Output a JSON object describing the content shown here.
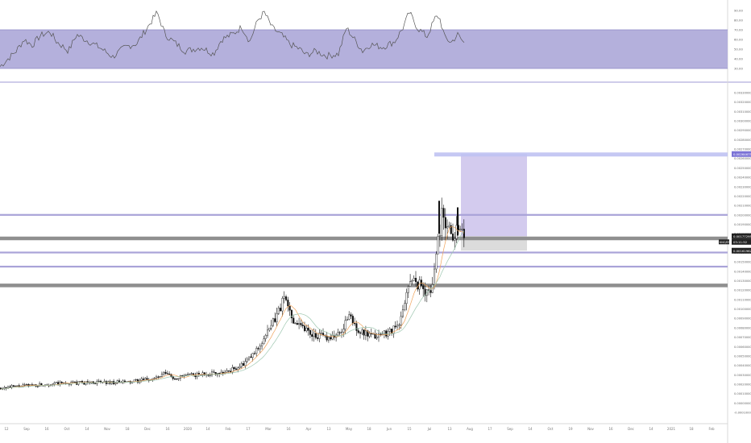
{
  "colors": {
    "rsi_band": "#b4b0dc",
    "rsi_line": "#555555",
    "long_zone": "#d3cbee",
    "stop_zone": "#dcdcdc",
    "level_purple": "#a9a3d8",
    "level_gray": "#8f8f8f",
    "target_line": "#bfc2f2",
    "candle": "#111111",
    "ma_fast": "#f0a35a",
    "ma_slow": "#9ec7b0",
    "label_dark": "#222222"
  },
  "rsi": {
    "type": "line",
    "axis_ticks": [
      "90.00",
      "80.00",
      "70.00",
      "60.00",
      "50.00",
      "40.00",
      "30.00"
    ],
    "band": [
      30,
      70
    ],
    "ylim": [
      25,
      95
    ]
  },
  "price_axis_ticks": [
    "0.00330000",
    "0.00320000",
    "0.00310000",
    "0.00300000",
    "0.00290000",
    "0.00280000",
    "0.00270000",
    "0.00260000",
    "0.00250000",
    "0.00240000",
    "0.00230000",
    "0.00220000",
    "0.00210000",
    "0.00200000",
    "0.00190000",
    "0.00180000",
    "0.00170000",
    "0.00160000",
    "0.00150000",
    "0.00140000",
    "0.00130000",
    "0.00120000",
    "0.00110000",
    "0.00100000",
    "0.00090000",
    "0.00080000",
    "0.00070000",
    "0.00060000",
    "0.00050000",
    "0.00040000",
    "0.00030000",
    "0.00020000",
    "0.00010000",
    "0.00000000",
    "-0.00010000"
  ],
  "time_axis_ticks": [
    "12",
    "Sep",
    "16",
    "Oct",
    "14",
    "Nov",
    "18",
    "Dec",
    "16",
    "2020",
    "14",
    "Feb",
    "17",
    "Mar",
    "16",
    "Apr",
    "13",
    "May",
    "18",
    "Jun",
    "15",
    "Jul",
    "13",
    "Aug",
    "17",
    "Sep",
    "14",
    "Oct",
    "19",
    "Nov",
    "16",
    "Dec",
    "14",
    "2021",
    "18",
    "Feb"
  ],
  "labels": {
    "ticker_label": "KNC/BTC",
    "target_price": "0.00264675",
    "entry_price": "0.00177295",
    "countdown": "03:11:52",
    "stop_price": "0.00161962"
  },
  "chart_data": {
    "type": "candlestick",
    "ylim": [
      -0.0001,
      0.0033
    ],
    "levels": [
      0.002,
      0.00175,
      0.0016,
      0.00145,
      0.00125
    ],
    "long_position": {
      "entry": 0.00177295,
      "target": 0.00264675,
      "stop": 0.00161962
    },
    "close_path": [
      [
        0,
        0.00016
      ],
      [
        40,
        0.00019
      ],
      [
        80,
        0.00021
      ],
      [
        120,
        0.00022
      ],
      [
        160,
        0.00022
      ],
      [
        195,
        0.00027
      ],
      [
        205,
        0.00032
      ],
      [
        215,
        0.00026
      ],
      [
        230,
        0.00029
      ],
      [
        255,
        0.00031
      ],
      [
        280,
        0.00033
      ],
      [
        300,
        0.0004
      ],
      [
        315,
        0.00053
      ],
      [
        325,
        0.00066
      ],
      [
        335,
        0.0008
      ],
      [
        345,
        0.00098
      ],
      [
        352,
        0.00112
      ],
      [
        362,
        0.0009
      ],
      [
        372,
        0.00084
      ],
      [
        385,
        0.00074
      ],
      [
        400,
        0.0007
      ],
      [
        420,
        0.00072
      ],
      [
        432,
        0.00093
      ],
      [
        445,
        0.00076
      ],
      [
        460,
        0.0007
      ],
      [
        478,
        0.00075
      ],
      [
        495,
        0.00082
      ],
      [
        505,
        0.00125
      ],
      [
        515,
        0.0013
      ],
      [
        525,
        0.0012
      ],
      [
        535,
        0.00118
      ],
      [
        540,
        0.0016
      ],
      [
        545,
        0.00185
      ],
      [
        548,
        0.00205
      ],
      [
        552,
        0.00195
      ],
      [
        560,
        0.00178
      ],
      [
        567,
        0.00188
      ],
      [
        572,
        0.0018
      ],
      [
        577,
        0.00177
      ]
    ],
    "rsi_path": [
      [
        0,
        32
      ],
      [
        10,
        40
      ],
      [
        20,
        48
      ],
      [
        30,
        60
      ],
      [
        40,
        54
      ],
      [
        50,
        64
      ],
      [
        62,
        68
      ],
      [
        70,
        58
      ],
      [
        85,
        48
      ],
      [
        95,
        65
      ],
      [
        110,
        58
      ],
      [
        125,
        51
      ],
      [
        140,
        42
      ],
      [
        155,
        52
      ],
      [
        170,
        56
      ],
      [
        185,
        75
      ],
      [
        195,
        88
      ],
      [
        205,
        65
      ],
      [
        215,
        58
      ],
      [
        230,
        48
      ],
      [
        250,
        52
      ],
      [
        265,
        45
      ],
      [
        275,
        60
      ],
      [
        290,
        66
      ],
      [
        300,
        73
      ],
      [
        310,
        58
      ],
      [
        320,
        80
      ],
      [
        328,
        88
      ],
      [
        338,
        72
      ],
      [
        350,
        64
      ],
      [
        360,
        55
      ],
      [
        372,
        50
      ],
      [
        380,
        44
      ],
      [
        392,
        48
      ],
      [
        405,
        43
      ],
      [
        420,
        45
      ],
      [
        430,
        72
      ],
      [
        440,
        60
      ],
      [
        450,
        48
      ],
      [
        460,
        55
      ],
      [
        475,
        52
      ],
      [
        490,
        58
      ],
      [
        500,
        72
      ],
      [
        508,
        88
      ],
      [
        518,
        72
      ],
      [
        530,
        63
      ],
      [
        540,
        82
      ],
      [
        545,
        84
      ],
      [
        552,
        62
      ],
      [
        560,
        57
      ],
      [
        568,
        65
      ],
      [
        577,
        55
      ]
    ]
  }
}
